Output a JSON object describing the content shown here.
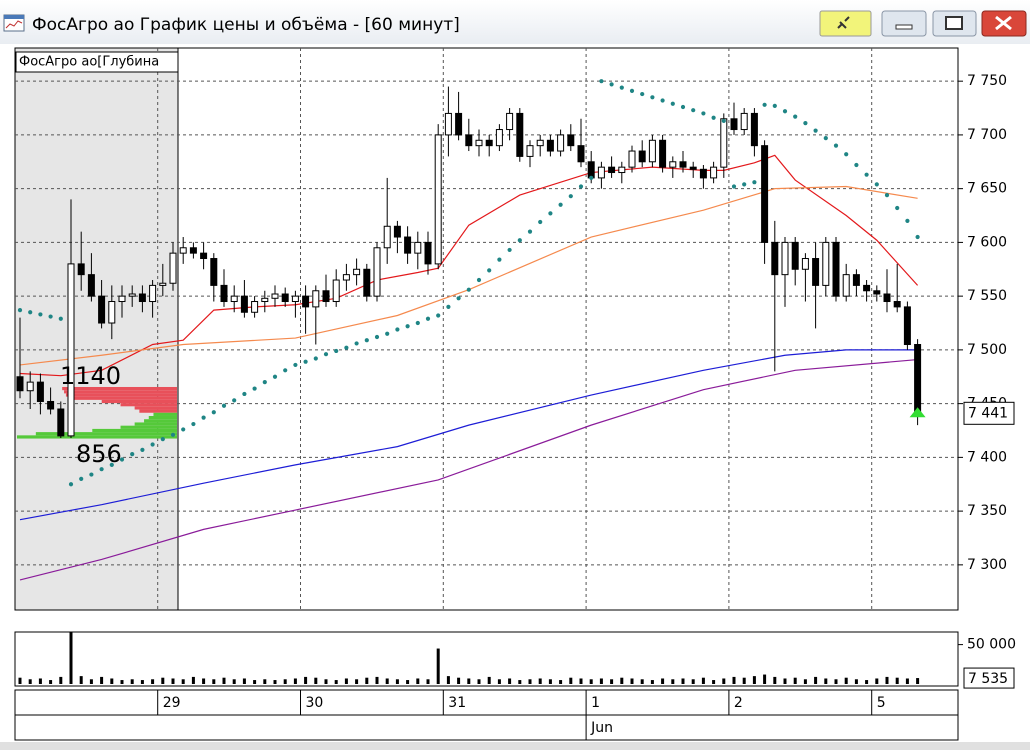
{
  "window": {
    "title": "ФосАгро ао График цены и объёма - [60 минут]"
  },
  "chart_data": {
    "type": "candlestick",
    "categories": [
      null,
      null,
      null,
      null,
      null,
      null,
      null,
      null,
      null,
      null,
      null,
      null,
      null,
      null,
      "29",
      null,
      null,
      null,
      null,
      null,
      null,
      null,
      null,
      null,
      null,
      null,
      null,
      null,
      "30",
      null,
      null,
      null,
      null,
      null,
      null,
      null,
      null,
      null,
      null,
      null,
      null,
      null,
      "31",
      null,
      null,
      null,
      null,
      null,
      null,
      null,
      null,
      null,
      null,
      null,
      null,
      null,
      "1",
      null,
      null,
      null,
      null,
      null,
      null,
      null,
      null,
      null,
      null,
      null,
      null,
      null,
      "2",
      null,
      null,
      null,
      null,
      null,
      null,
      null,
      null,
      null,
      null,
      null,
      null,
      null,
      "5",
      null,
      null,
      null,
      null
    ],
    "month": "Jun",
    "ylim": [
      7258,
      7779
    ],
    "yticks": [
      {
        "value": 7300,
        "label": "7 300"
      },
      {
        "value": 7350,
        "label": "7 350"
      },
      {
        "value": 7400,
        "label": "7 400"
      },
      {
        "value": 7450,
        "label": "7 450"
      },
      {
        "value": 7500,
        "label": "7 500"
      },
      {
        "value": 7550,
        "label": "7 550"
      },
      {
        "value": 7600,
        "label": "7 600"
      },
      {
        "value": 7650,
        "label": "7 650"
      },
      {
        "value": 7700,
        "label": "7 700"
      },
      {
        "value": 7750,
        "label": "7 750"
      }
    ],
    "grid": true,
    "up_color": "#ffffff",
    "down_color": "#000000",
    "ohlc": [
      [
        7475,
        7530,
        7455,
        7462
      ],
      [
        7462,
        7480,
        7445,
        7470
      ],
      [
        7470,
        7478,
        7440,
        7452
      ],
      [
        7452,
        7465,
        7440,
        7445
      ],
      [
        7445,
        7452,
        7418,
        7420
      ],
      [
        7420,
        7640,
        7418,
        7580
      ],
      [
        7580,
        7610,
        7555,
        7570
      ],
      [
        7570,
        7590,
        7545,
        7550
      ],
      [
        7550,
        7565,
        7520,
        7525
      ],
      [
        7525,
        7560,
        7510,
        7545
      ],
      [
        7545,
        7560,
        7530,
        7550
      ],
      [
        7550,
        7560,
        7540,
        7552
      ],
      [
        7552,
        7560,
        7535,
        7545
      ],
      [
        7545,
        7565,
        7530,
        7560
      ],
      [
        7560,
        7580,
        7550,
        7562
      ],
      [
        7562,
        7600,
        7555,
        7590
      ],
      [
        7590,
        7605,
        7580,
        7595
      ],
      [
        7595,
        7600,
        7585,
        7590
      ],
      [
        7590,
        7600,
        7575,
        7585
      ],
      [
        7585,
        7590,
        7545,
        7560
      ],
      [
        7560,
        7575,
        7540,
        7545
      ],
      [
        7545,
        7560,
        7535,
        7550
      ],
      [
        7550,
        7565,
        7530,
        7535
      ],
      [
        7535,
        7550,
        7530,
        7545
      ],
      [
        7545,
        7555,
        7535,
        7548
      ],
      [
        7548,
        7560,
        7540,
        7552
      ],
      [
        7552,
        7558,
        7540,
        7545
      ],
      [
        7545,
        7555,
        7530,
        7550
      ],
      [
        7550,
        7560,
        7515,
        7540
      ],
      [
        7540,
        7560,
        7505,
        7555
      ],
      [
        7555,
        7570,
        7540,
        7545
      ],
      [
        7545,
        7575,
        7540,
        7565
      ],
      [
        7565,
        7580,
        7555,
        7570
      ],
      [
        7570,
        7585,
        7560,
        7575
      ],
      [
        7575,
        7580,
        7545,
        7550
      ],
      [
        7550,
        7600,
        7545,
        7595
      ],
      [
        7595,
        7660,
        7580,
        7615
      ],
      [
        7615,
        7620,
        7590,
        7605
      ],
      [
        7605,
        7615,
        7580,
        7590
      ],
      [
        7590,
        7610,
        7575,
        7600
      ],
      [
        7600,
        7610,
        7570,
        7580
      ],
      [
        7580,
        7710,
        7575,
        7700
      ],
      [
        7700,
        7745,
        7680,
        7720
      ],
      [
        7720,
        7740,
        7695,
        7700
      ],
      [
        7700,
        7715,
        7685,
        7690
      ],
      [
        7690,
        7705,
        7680,
        7695
      ],
      [
        7695,
        7700,
        7680,
        7690
      ],
      [
        7690,
        7710,
        7685,
        7705
      ],
      [
        7705,
        7725,
        7695,
        7720
      ],
      [
        7720,
        7725,
        7675,
        7680
      ],
      [
        7680,
        7695,
        7670,
        7690
      ],
      [
        7690,
        7700,
        7680,
        7695
      ],
      [
        7695,
        7700,
        7680,
        7685
      ],
      [
        7685,
        7705,
        7680,
        7700
      ],
      [
        7700,
        7710,
        7685,
        7690
      ],
      [
        7690,
        7715,
        7670,
        7675
      ],
      [
        7675,
        7685,
        7655,
        7660
      ],
      [
        7660,
        7675,
        7650,
        7670
      ],
      [
        7670,
        7680,
        7660,
        7665
      ],
      [
        7665,
        7675,
        7655,
        7670
      ],
      [
        7670,
        7690,
        7665,
        7685
      ],
      [
        7685,
        7695,
        7670,
        7675
      ],
      [
        7675,
        7700,
        7670,
        7695
      ],
      [
        7695,
        7700,
        7665,
        7670
      ],
      [
        7670,
        7680,
        7660,
        7675
      ],
      [
        7675,
        7685,
        7665,
        7670
      ],
      [
        7670,
        7675,
        7660,
        7668
      ],
      [
        7668,
        7672,
        7650,
        7660
      ],
      [
        7660,
        7675,
        7655,
        7670
      ],
      [
        7670,
        7720,
        7660,
        7715
      ],
      [
        7715,
        7730,
        7700,
        7705
      ],
      [
        7705,
        7725,
        7700,
        7720
      ],
      [
        7720,
        7725,
        7680,
        7690
      ],
      [
        7690,
        7695,
        7580,
        7600
      ],
      [
        7600,
        7620,
        7480,
        7570
      ],
      [
        7570,
        7605,
        7540,
        7600
      ],
      [
        7600,
        7605,
        7560,
        7575
      ],
      [
        7575,
        7590,
        7545,
        7585
      ],
      [
        7585,
        7600,
        7520,
        7560
      ],
      [
        7560,
        7605,
        7550,
        7600
      ],
      [
        7600,
        7605,
        7545,
        7550
      ],
      [
        7550,
        7580,
        7545,
        7570
      ],
      [
        7570,
        7575,
        7550,
        7560
      ],
      [
        7560,
        7565,
        7545,
        7555
      ],
      [
        7555,
        7560,
        7545,
        7552
      ],
      [
        7552,
        7575,
        7535,
        7545
      ],
      [
        7545,
        7580,
        7535,
        7540
      ],
      [
        7540,
        7545,
        7500,
        7505
      ],
      [
        7505,
        7510,
        7430,
        7441
      ]
    ],
    "last_price": {
      "value": 7441,
      "label": "7 441"
    },
    "series": [
      {
        "color": "#e3191c",
        "x": [
          0,
          4,
          8,
          13,
          16,
          19,
          23,
          27,
          31,
          35,
          39,
          41,
          44,
          49,
          56,
          62,
          67,
          69,
          72,
          74,
          76,
          81,
          84,
          88
        ],
        "values": [
          7478,
          7476,
          7481,
          7505,
          7509,
          7537,
          7540,
          7542,
          7548,
          7565,
          7572,
          7576,
          7616,
          7644,
          7665,
          7670,
          7667,
          7667,
          7674,
          7681,
          7658,
          7625,
          7602,
          7560
        ]
      },
      {
        "color": "#f58a4e",
        "x": [
          0,
          8,
          16,
          27,
          37,
          44,
          56,
          67,
          74,
          81,
          88
        ],
        "values": [
          7486,
          7495,
          7505,
          7511,
          7532,
          7556,
          7605,
          7630,
          7650,
          7652,
          7641
        ]
      },
      {
        "color": "#1d1dd6",
        "x": [
          0,
          8,
          18,
          27,
          37,
          44,
          56,
          67,
          75,
          81,
          88
        ],
        "values": [
          7342,
          7356,
          7376,
          7393,
          7410,
          7430,
          7458,
          7481,
          7495,
          7500,
          7500
        ]
      },
      {
        "color": "#8a1c9a",
        "x": [
          0,
          8,
          18,
          27,
          41,
          56,
          67,
          76,
          88
        ],
        "values": [
          7286,
          7305,
          7333,
          7351,
          7379,
          7430,
          7463,
          7481,
          7491
        ]
      }
    ],
    "sar": {
      "color": "#1f8585",
      "values": [
        7537,
        7535,
        7533,
        7531,
        7529,
        7375,
        7380,
        7384,
        7389,
        7393,
        7398,
        7403,
        7407,
        7412,
        7417,
        7421,
        7426,
        7431,
        7437,
        7442,
        7448,
        7453,
        7459,
        7464,
        7470,
        7475,
        7481,
        7486,
        7489,
        7492,
        7496,
        7499,
        7502,
        7506,
        7509,
        7512,
        7515,
        7519,
        7522,
        7525,
        7529,
        7532,
        7540,
        7548,
        7556,
        7565,
        7574,
        7584,
        7593,
        7602,
        7610,
        7619,
        7627,
        7635,
        7643,
        7652,
        7660,
        7750,
        7747,
        7744,
        7741,
        7738,
        7735,
        7732,
        7729,
        7726,
        7723,
        7720,
        7716,
        7713,
        7652,
        7654,
        7656,
        7728,
        7727,
        7722,
        7717,
        7711,
        7704,
        7697,
        7690,
        7682,
        7672,
        7663,
        7654,
        7644,
        7632,
        7620,
        7605
      ]
    },
    "signal_color": "#33dd33",
    "depth": {
      "title": "ФосАгро ао[Глубина",
      "ask_total": 1140,
      "bid_total": 856,
      "xlim": [
        0,
        170
      ],
      "ask_color": "#e8505a",
      "bid_color": "#55c93a",
      "asks": {
        "prices": [
          7464,
          7461,
          7458,
          7455,
          7452,
          7449,
          7446,
          7443
        ],
        "volumes": [
          122,
          120,
          118,
          110,
          80,
          60,
          45,
          40
        ]
      },
      "bids": {
        "prices": [
          7440,
          7437,
          7434,
          7431,
          7428,
          7425,
          7422,
          7419
        ],
        "volumes": [
          25,
          30,
          35,
          45,
          60,
          90,
          150,
          170
        ]
      }
    },
    "volume": {
      "color": "#000000",
      "ylim": [
        0,
        66000
      ],
      "yticks": [
        {
          "value": 50000,
          "label": "50 000"
        }
      ],
      "values": [
        8000,
        6000,
        7000,
        5000,
        9000,
        66000,
        10000,
        6000,
        9000,
        7000,
        5000,
        6000,
        5000,
        6000,
        8000,
        7000,
        6000,
        9000,
        7000,
        6000,
        8000,
        6000,
        7000,
        5000,
        6000,
        5000,
        6000,
        7000,
        9000,
        8000,
        6000,
        5000,
        7000,
        6000,
        8000,
        9000,
        7000,
        6000,
        5000,
        7000,
        6000,
        45000,
        10000,
        8000,
        7000,
        6000,
        9000,
        6000,
        7000,
        5000,
        6000,
        7000,
        6000,
        5000,
        8000,
        7000,
        6000,
        7000,
        6000,
        8000,
        7000,
        6000,
        5000,
        7000,
        6000,
        7000,
        6000,
        8000,
        5000,
        7000,
        9000,
        8000,
        10000,
        12000,
        9000,
        7000,
        8000,
        6000,
        9000,
        7000,
        6000,
        8000,
        6000,
        5000,
        7000,
        9000,
        8000,
        7000,
        7535
      ],
      "last": {
        "value": 7535,
        "label": "7 535"
      }
    }
  }
}
